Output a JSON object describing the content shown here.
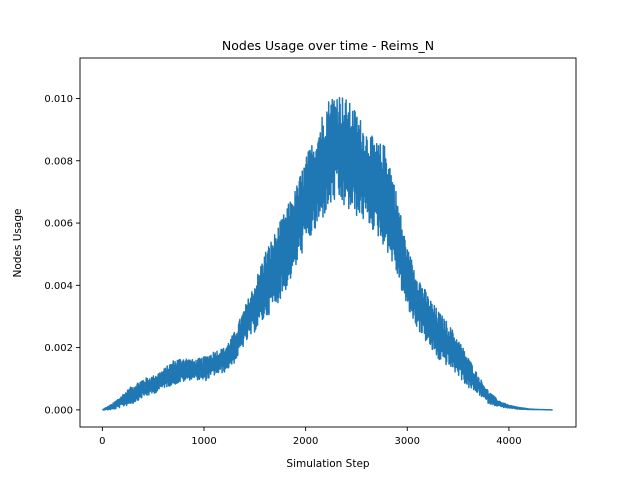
{
  "chart_data": {
    "type": "line",
    "title": "Nodes Usage over time - Reims_N",
    "xlabel": "Simulation Step",
    "ylabel": "Nodes Usage",
    "xlim": [
      -220,
      4660
    ],
    "ylim": [
      -0.00055,
      0.0113
    ],
    "xticks": [
      0,
      1000,
      2000,
      3000,
      4000
    ],
    "xtick_labels": [
      "0",
      "1000",
      "2000",
      "3000",
      "4000"
    ],
    "yticks": [
      0.0,
      0.002,
      0.004,
      0.006,
      0.008,
      0.01
    ],
    "ytick_labels": [
      "0.000",
      "0.002",
      "0.004",
      "0.006",
      "0.008",
      "0.010"
    ],
    "grid": false,
    "series": [
      {
        "color": "#1f77b4",
        "x": [
          0,
          100,
          200,
          300,
          400,
          500,
          600,
          700,
          800,
          900,
          1000,
          1100,
          1200,
          1300,
          1400,
          1500,
          1600,
          1700,
          1800,
          1900,
          2000,
          2100,
          2200,
          2300,
          2400,
          2500,
          2600,
          2700,
          2800,
          2900,
          3000,
          3100,
          3200,
          3300,
          3400,
          3500,
          3600,
          3700,
          3800,
          3900,
          4000,
          4100,
          4200,
          4300,
          4430
        ],
        "y": [
          0.0,
          0.0001,
          0.0003,
          0.0005,
          0.0007,
          0.0008,
          0.001,
          0.0012,
          0.0013,
          0.0013,
          0.0013,
          0.0015,
          0.0016,
          0.002,
          0.0027,
          0.0033,
          0.004,
          0.0045,
          0.0051,
          0.0058,
          0.0067,
          0.0073,
          0.0081,
          0.0085,
          0.0082,
          0.0079,
          0.0075,
          0.0071,
          0.0068,
          0.0056,
          0.0042,
          0.0035,
          0.0029,
          0.0024,
          0.0021,
          0.0017,
          0.0012,
          0.0008,
          0.0004,
          0.0002,
          0.0001,
          5e-05,
          2e-05,
          1e-05,
          0.0
        ],
        "amplitude": [
          0.0,
          0.0001,
          0.0002,
          0.0003,
          0.0003,
          0.0003,
          0.0003,
          0.0004,
          0.0004,
          0.0003,
          0.0004,
          0.0004,
          0.0004,
          0.0005,
          0.0006,
          0.0008,
          0.0011,
          0.0012,
          0.0013,
          0.0013,
          0.0014,
          0.0016,
          0.0018,
          0.0018,
          0.0018,
          0.0017,
          0.0015,
          0.0015,
          0.0017,
          0.0013,
          0.001,
          0.0009,
          0.0008,
          0.0008,
          0.0007,
          0.0006,
          0.0005,
          0.0003,
          0.0002,
          0.0001,
          5e-05,
          3e-05,
          1e-05,
          0.0,
          0.0
        ]
      }
    ]
  }
}
